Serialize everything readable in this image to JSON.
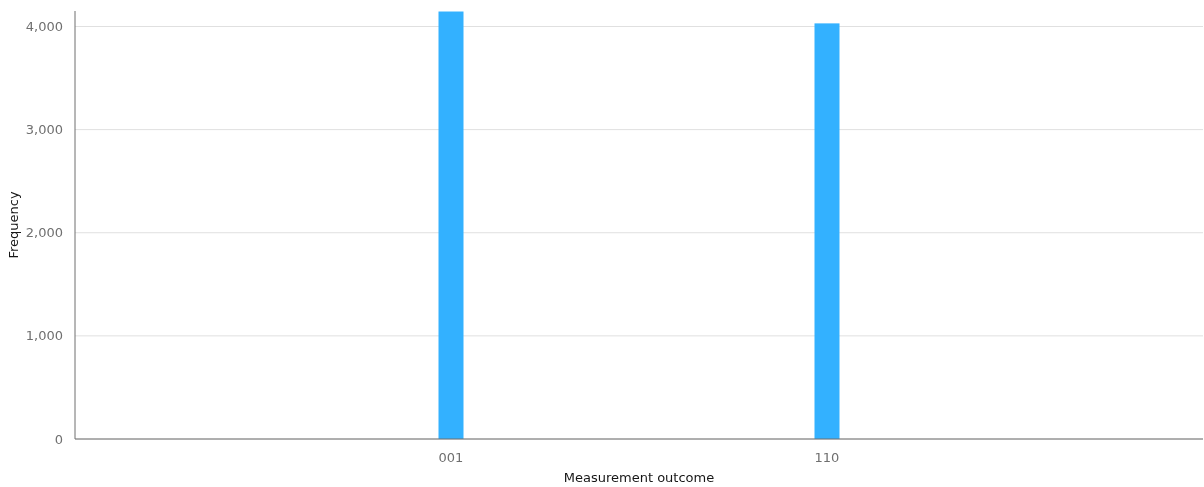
{
  "chart_data": {
    "type": "bar",
    "xlabel": "Measurement outcome",
    "ylabel": "Frequency",
    "categories": [
      "001",
      "110"
    ],
    "values": [
      4145,
      4030
    ],
    "color": "#33b1ff",
    "ylim": [
      0,
      4150
    ],
    "yticks": [
      {
        "value": 0,
        "label": "0"
      },
      {
        "value": 1000,
        "label": "1,000"
      },
      {
        "value": 2000,
        "label": "2,000"
      },
      {
        "value": 3000,
        "label": "3,000"
      },
      {
        "value": 4000,
        "label": "4,000"
      }
    ],
    "grid": "y"
  }
}
